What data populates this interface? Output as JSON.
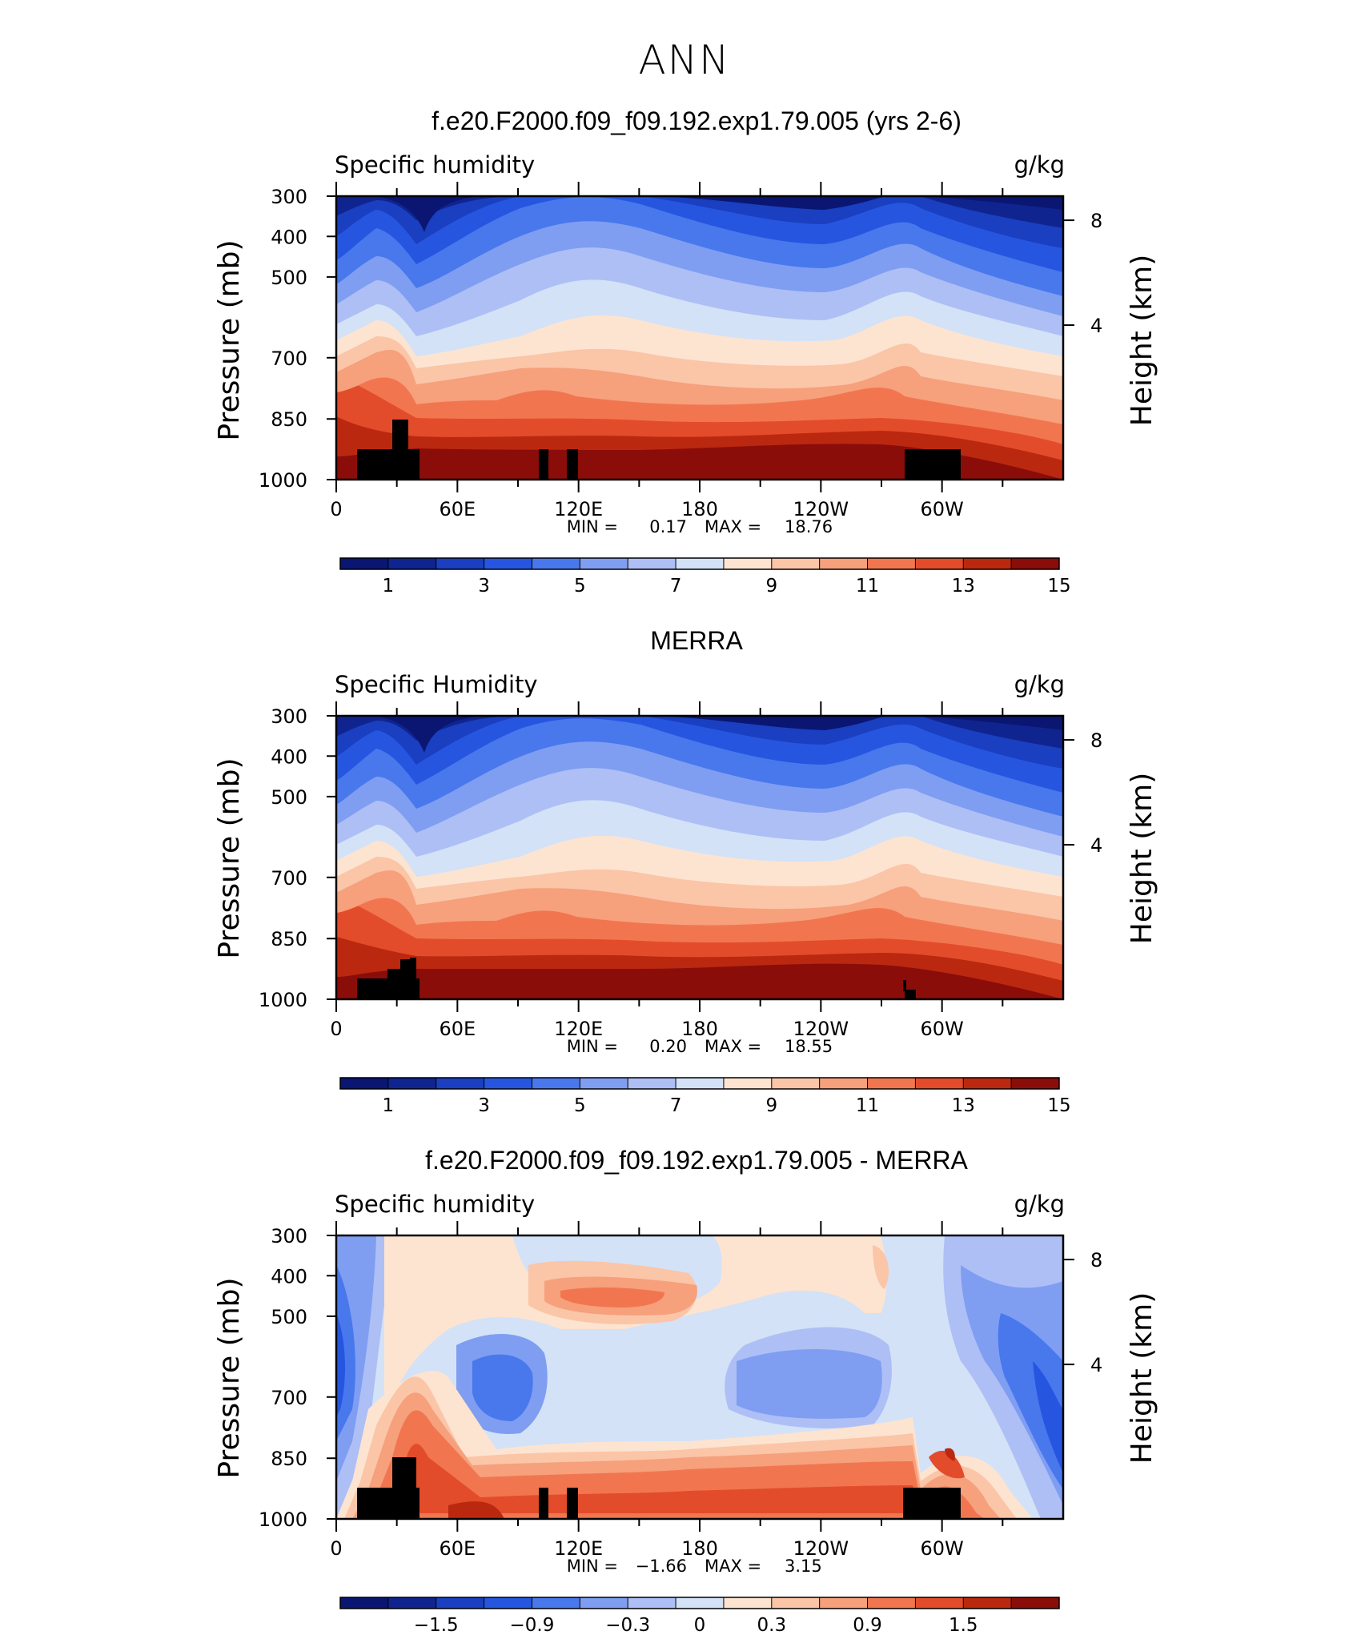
{
  "page_title": "ANN",
  "colors": {
    "seq_scale": [
      "#0a1672",
      "#10248f",
      "#1a3fc0",
      "#2656e0",
      "#4878ec",
      "#7f9ef2",
      "#aebff6",
      "#d3e2f7",
      "#fde4d0",
      "#fbc5a8",
      "#f6a07c",
      "#f17650",
      "#e34c2a",
      "#bb2810",
      "#8a0d0a"
    ],
    "div_scale": [
      "#0a1672",
      "#10248f",
      "#1a3fc0",
      "#2656e0",
      "#4878ec",
      "#7f9ef2",
      "#aebff6",
      "#d3e2f7",
      "#fde4d0",
      "#fbc5a8",
      "#f6a07c",
      "#f17650",
      "#e34c2a",
      "#bb2810",
      "#8a0d0a"
    ],
    "terrain": "#000000"
  },
  "chart_data": [
    {
      "type": "heatmap",
      "title": "f.e20.F2000.f09_f09.192.exp1.79.005 (yrs 2-6)",
      "left_label": "Specific humidity",
      "right_label": "g/kg",
      "ylabel": "Pressure (mb)",
      "ylabel_right": "Height (km)",
      "x_ticks": [
        "0",
        "60E",
        "120E",
        "180",
        "120W",
        "60W"
      ],
      "y_ticks": [
        "300",
        "400",
        "500",
        "700",
        "850",
        "1000"
      ],
      "y_ticks_right": [
        "8",
        "4"
      ],
      "min_label": "MIN =",
      "min_value": "0.17",
      "max_label": "MAX =",
      "max_value": "18.76",
      "colorbar_labels": [
        "1",
        "3",
        "5",
        "7",
        "9",
        "11",
        "13",
        "15"
      ]
    },
    {
      "type": "heatmap",
      "title": "MERRA",
      "left_label": "Specific Humidity",
      "right_label": "g/kg",
      "ylabel": "Pressure (mb)",
      "ylabel_right": "Height (km)",
      "x_ticks": [
        "0",
        "60E",
        "120E",
        "180",
        "120W",
        "60W"
      ],
      "y_ticks": [
        "300",
        "400",
        "500",
        "700",
        "850",
        "1000"
      ],
      "y_ticks_right": [
        "8",
        "4"
      ],
      "min_label": "MIN =",
      "min_value": "0.20",
      "max_label": "MAX =",
      "max_value": "18.55",
      "colorbar_labels": [
        "1",
        "3",
        "5",
        "7",
        "9",
        "11",
        "13",
        "15"
      ]
    },
    {
      "type": "heatmap",
      "title": "f.e20.F2000.f09_f09.192.exp1.79.005 - MERRA",
      "left_label": "Specific humidity",
      "right_label": "g/kg",
      "ylabel": "Pressure (mb)",
      "ylabel_right": "Height (km)",
      "x_ticks": [
        "0",
        "60E",
        "120E",
        "180",
        "120W",
        "60W"
      ],
      "y_ticks": [
        "300",
        "400",
        "500",
        "700",
        "850",
        "1000"
      ],
      "y_ticks_right": [
        "8",
        "4"
      ],
      "min_label": "MIN =",
      "min_value": "−1.66",
      "max_label": "MAX =",
      "max_value": "3.15",
      "colorbar_labels": [
        "−1.5",
        "−0.9",
        "−0.3",
        "0",
        "0.3",
        "0.9",
        "1.5"
      ]
    }
  ]
}
